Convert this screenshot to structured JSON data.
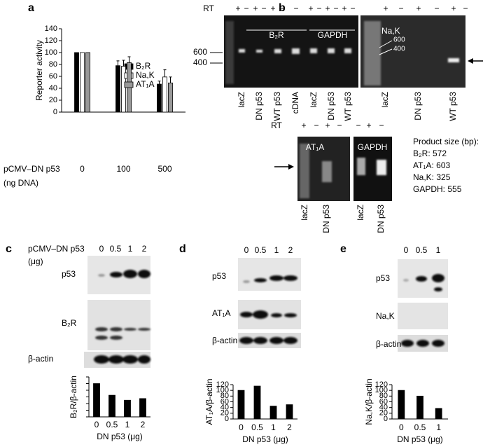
{
  "panel_letters": [
    "a",
    "b",
    "c",
    "d",
    "e"
  ],
  "chart_data": [
    {
      "type": "bar",
      "y_label": "Reporter activity",
      "x_label": "pCMV–DN p53",
      "x_label_unit": "(ng DNA)",
      "categories": [
        "0",
        "100",
        "500"
      ],
      "series": [
        {
          "name": "B₂R",
          "color": "#000000",
          "values": [
            100,
            78,
            47
          ],
          "errors": [
            null,
            8,
            5
          ]
        },
        {
          "name": "Na,K",
          "color": "#ffffff",
          "values": [
            100,
            77,
            59
          ],
          "errors": [
            null,
            10,
            12
          ]
        },
        {
          "name": "AT₁A",
          "color": "#999999",
          "values": [
            100,
            83,
            49
          ],
          "errors": [
            null,
            10,
            10
          ]
        }
      ],
      "ylim": [
        0,
        140
      ],
      "yticks": [
        0,
        20,
        40,
        60,
        80,
        100,
        120,
        140
      ]
    },
    {
      "type": "bar",
      "y_label": "B₂R/β-actin",
      "x_label": "DN p53 (μg)",
      "categories": [
        "0",
        "0.5",
        "1",
        "2"
      ],
      "values": [
        100,
        65,
        50,
        55
      ],
      "color": "#000000",
      "ylim": [
        0,
        120
      ],
      "yticks": [
        0,
        20,
        40,
        60,
        80,
        100,
        120
      ],
      "tick_labels": false
    },
    {
      "type": "bar",
      "y_label": "AT₁A/β-actin",
      "x_label": "DN p53 (μg)",
      "categories": [
        "0",
        "0.5",
        "1",
        "2"
      ],
      "values": [
        100,
        115,
        45,
        50
      ],
      "color": "#000000",
      "ylim": [
        0,
        120
      ],
      "yticks": [
        0,
        20,
        40,
        60,
        80,
        100,
        120
      ]
    },
    {
      "type": "bar",
      "y_label": "Na,K/β-actin",
      "x_label": "DN p53 (μg)",
      "categories": [
        "0",
        "0.5",
        "1"
      ],
      "values": [
        100,
        80,
        37
      ],
      "color": "#000000",
      "ylim": [
        0,
        120
      ],
      "yticks": [
        0,
        20,
        40,
        60,
        80,
        100,
        120
      ]
    }
  ],
  "gel_b": {
    "rt": "RT",
    "signs_left": [
      "+",
      "−",
      "+",
      "−",
      "+",
      "−",
      "−",
      "+",
      "−",
      "+",
      "−",
      "+",
      "−"
    ],
    "lanes_left": [
      "lacZ",
      "DN p53",
      "WT p53",
      "cDNA",
      "lacZ",
      "DN p53",
      "WT p53"
    ],
    "genes_left": [
      "B₂R",
      "GAPDH"
    ],
    "markers_left": [
      "600",
      "400"
    ],
    "signs_right": [
      "+",
      "−",
      "+",
      "−",
      "+",
      "−"
    ],
    "gene_right": "Na,K",
    "markers_right": [
      "600",
      "400"
    ],
    "lanes_right": [
      "lacZ",
      "DN p53",
      "WT p53"
    ]
  },
  "gel_b_lower": {
    "rt": "RT",
    "signs": [
      "+",
      "−",
      "+",
      "−",
      "−",
      "+",
      "−"
    ],
    "lanes": [
      "lacZ",
      "DN p53",
      "lacZ",
      "DN p53"
    ],
    "genes": [
      "AT₁A",
      "GAPDH"
    ]
  },
  "product_size": [
    "Product size (bp):",
    "B₂R: 572",
    "AT₁A: 603",
    "Na,K: 325",
    "GAPDH: 555"
  ],
  "blot_c": {
    "x_label": "pCMV–DN p53",
    "unit": "(μg)",
    "lanes": [
      "0",
      "0.5",
      "1",
      "2"
    ],
    "rows": [
      "p53",
      "B₂R",
      "β-actin"
    ]
  },
  "blot_d": {
    "lanes": [
      "0",
      "0.5",
      "1",
      "2"
    ],
    "rows": [
      "p53",
      "AT₁A",
      "β-actin"
    ]
  },
  "blot_e": {
    "lanes": [
      "0",
      "0.5",
      "1"
    ],
    "rows": [
      "p53",
      "Na,K",
      "β-actin"
    ]
  }
}
